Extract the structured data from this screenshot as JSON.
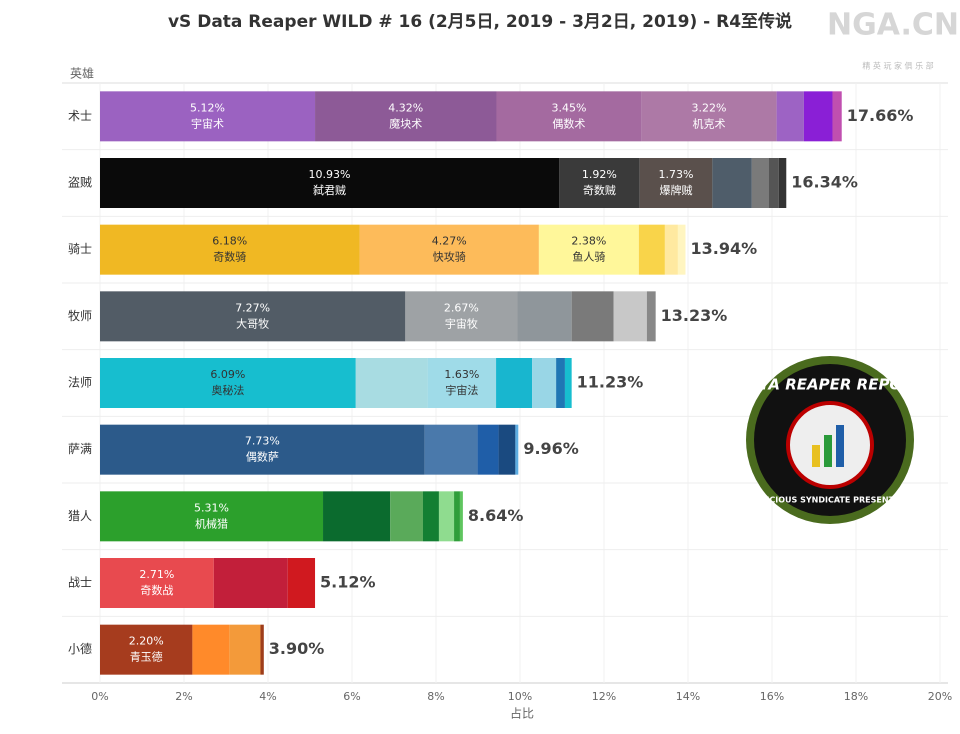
{
  "chart_data": {
    "type": "stacked-bar-horizontal",
    "title": "vS Data Reaper WILD # 16 (2月5日, 2019 - 3月2日, 2019) - R4至传说",
    "y_axis_title": "英雄",
    "x_axis_title": "占比",
    "watermark": {
      "title": "NGA.CN",
      "subtitle": "精 英 玩 家 俱 乐 部"
    },
    "badge": {
      "title": "DATA REAPER REPORT",
      "subtitle": "VICIOUS SYNDICATE PRESENTS"
    },
    "xlim": [
      0,
      20
    ],
    "xticks": [
      {
        "value": 0,
        "label": "0%"
      },
      {
        "value": 2,
        "label": "2%"
      },
      {
        "value": 4,
        "label": "4%"
      },
      {
        "value": 6,
        "label": "6%"
      },
      {
        "value": 8,
        "label": "8%"
      },
      {
        "value": 10,
        "label": "10%"
      },
      {
        "value": 12,
        "label": "12%"
      },
      {
        "value": 14,
        "label": "14%"
      },
      {
        "value": 16,
        "label": "16%"
      },
      {
        "value": 18,
        "label": "18%"
      },
      {
        "value": 20,
        "label": "20%"
      }
    ],
    "bars": [
      {
        "category": "术士",
        "total": 17.66,
        "total_label": "17.66%",
        "label_color": "#ffffff",
        "segments": [
          {
            "value": 5.12,
            "value_label": "5.12%",
            "name": "宇宙术",
            "color": "#9b62c1"
          },
          {
            "value": 4.32,
            "value_label": "4.32%",
            "name": "魔块术",
            "color": "#8d5a97"
          },
          {
            "value": 3.45,
            "value_label": "3.45%",
            "name": "偶数术",
            "color": "#a46aa0"
          },
          {
            "value": 3.22,
            "value_label": "3.22%",
            "name": "机克术",
            "color": "#ad79a6"
          },
          {
            "value": 0.65,
            "color": "#9d63c4"
          },
          {
            "value": 0.68,
            "color": "#8a1fd6"
          },
          {
            "value": 0.22,
            "color": "#c04fb0"
          }
        ]
      },
      {
        "category": "盗贼",
        "total": 16.34,
        "total_label": "16.34%",
        "label_color": "#ffffff",
        "segments": [
          {
            "value": 10.93,
            "value_label": "10.93%",
            "name": "弑君贼",
            "color": "#0a0a0a"
          },
          {
            "value": 1.92,
            "value_label": "1.92%",
            "name": "奇数贼",
            "color": "#3a3a3a"
          },
          {
            "value": 1.73,
            "value_label": "1.73%",
            "name": "爆牌贼",
            "color": "#5a504c"
          },
          {
            "value": 0.94,
            "color": "#4f5d6a"
          },
          {
            "value": 0.4,
            "color": "#7a7a7a"
          },
          {
            "value": 0.24,
            "color": "#555555"
          },
          {
            "value": 0.18,
            "color": "#333333"
          }
        ]
      },
      {
        "category": "骑士",
        "total": 13.94,
        "total_label": "13.94%",
        "label_color": "#333333",
        "segments": [
          {
            "value": 6.18,
            "value_label": "6.18%",
            "name": "奇数骑",
            "color": "#f0b823"
          },
          {
            "value": 4.27,
            "value_label": "4.27%",
            "name": "快攻骑",
            "color": "#fdbb5a"
          },
          {
            "value": 2.38,
            "value_label": "2.38%",
            "name": "鱼人骑",
            "color": "#fff79a"
          },
          {
            "value": 0.62,
            "color": "#f9d44a"
          },
          {
            "value": 0.31,
            "color": "#ffe9a0"
          },
          {
            "value": 0.18,
            "color": "#fff5c0"
          }
        ]
      },
      {
        "category": "牧师",
        "total": 13.23,
        "total_label": "13.23%",
        "label_color": "#ffffff",
        "segments": [
          {
            "value": 7.27,
            "value_label": "7.27%",
            "name": "大哥牧",
            "color": "#525c66"
          },
          {
            "value": 2.67,
            "value_label": "2.67%",
            "name": "宇宙牧",
            "color": "#9ea2a5"
          },
          {
            "value": 1.29,
            "color": "#8f969b"
          },
          {
            "value": 1.0,
            "color": "#7a7a7a"
          },
          {
            "value": 0.79,
            "color": "#c8c8c8"
          },
          {
            "value": 0.21,
            "color": "#888888"
          }
        ]
      },
      {
        "category": "法师",
        "total": 11.23,
        "total_label": "11.23%",
        "label_color": "#333333",
        "segments": [
          {
            "value": 6.09,
            "value_label": "6.09%",
            "name": "奥秘法",
            "color": "#17becf"
          },
          {
            "value": 1.71,
            "color": "#a8dce2"
          },
          {
            "value": 1.63,
            "value_label": "1.63%",
            "name": "宇宙法",
            "color": "#9fdbe8"
          },
          {
            "value": 0.86,
            "color": "#18b6cf"
          },
          {
            "value": 0.57,
            "color": "#99d6e6"
          },
          {
            "value": 0.21,
            "color": "#1f77b4"
          },
          {
            "value": 0.16,
            "color": "#17becf"
          }
        ]
      },
      {
        "category": "萨满",
        "total": 9.96,
        "total_label": "9.96%",
        "label_color": "#ffffff",
        "segments": [
          {
            "value": 7.73,
            "value_label": "7.73%",
            "name": "偶数萨",
            "color": "#2c5a8a"
          },
          {
            "value": 1.26,
            "color": "#4a79ab"
          },
          {
            "value": 0.5,
            "color": "#1f5ea8"
          },
          {
            "value": 0.4,
            "color": "#1a4a80"
          },
          {
            "value": 0.07,
            "color": "#5dade2"
          }
        ]
      },
      {
        "category": "猎人",
        "total": 8.64,
        "total_label": "8.64%",
        "label_color": "#ffffff",
        "segments": [
          {
            "value": 5.31,
            "value_label": "5.31%",
            "name": "机械猎",
            "color": "#2ca02c"
          },
          {
            "value": 1.6,
            "color": "#0b6b2e"
          },
          {
            "value": 0.78,
            "color": "#5aaa5a"
          },
          {
            "value": 0.38,
            "color": "#137f32"
          },
          {
            "value": 0.36,
            "color": "#8fdc8f"
          },
          {
            "value": 0.14,
            "color": "#2f9e3a"
          },
          {
            "value": 0.07,
            "color": "#5fc55f"
          }
        ]
      },
      {
        "category": "战士",
        "total": 5.12,
        "total_label": "5.12%",
        "label_color": "#ffffff",
        "segments": [
          {
            "value": 2.71,
            "value_label": "2.71%",
            "name": "奇数战",
            "color": "#e84a4f"
          },
          {
            "value": 1.76,
            "color": "#c21f3a"
          },
          {
            "value": 0.65,
            "color": "#d0191f"
          }
        ]
      },
      {
        "category": "小德",
        "total": 3.9,
        "total_label": "3.90%",
        "label_color": "#ffffff",
        "segments": [
          {
            "value": 2.2,
            "value_label": "2.20%",
            "name": "青玉德",
            "color": "#a63c1e"
          },
          {
            "value": 0.88,
            "color": "#ff8a2a"
          },
          {
            "value": 0.74,
            "color": "#f39a3a"
          },
          {
            "value": 0.08,
            "color": "#9e3d1a"
          }
        ]
      }
    ]
  }
}
